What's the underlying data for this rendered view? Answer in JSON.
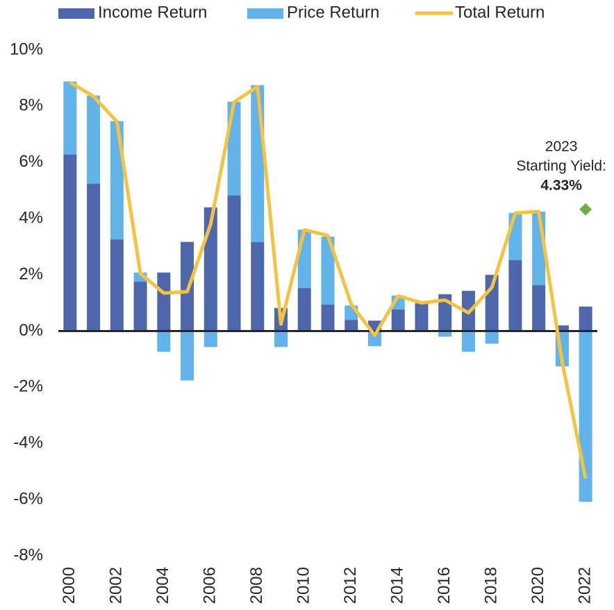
{
  "chart_data": {
    "type": "bar",
    "categories": [
      "2000",
      null,
      "2002",
      null,
      "2004",
      null,
      "2006",
      null,
      "2008",
      null,
      "2010",
      null,
      "2012",
      null,
      "2014",
      null,
      "2016",
      null,
      "2018",
      null,
      "2020",
      null,
      "2022"
    ],
    "series": [
      {
        "name": "Income Return",
        "type": "bar",
        "color": "#4e67aa",
        "values": [
          6.28,
          5.24,
          3.26,
          1.76,
          2.08,
          3.17,
          4.4,
          4.82,
          3.17,
          0.82,
          1.53,
          0.94,
          0.4,
          0.37,
          0.77,
          0.99,
          1.31,
          1.43,
          2.0,
          2.52,
          1.63,
          0.2,
          0.87
        ]
      },
      {
        "name": "Price Return",
        "type": "bar",
        "color": "#62b3ea",
        "values": [
          2.6,
          3.14,
          4.21,
          0.32,
          -0.74,
          -1.76,
          -0.57,
          3.34,
          5.58,
          -0.57,
          2.08,
          2.42,
          0.51,
          -0.54,
          0.49,
          0,
          -0.2,
          -0.74,
          -0.45,
          1.68,
          2.62,
          -1.26,
          -6.08
        ]
      },
      {
        "name": "Total Return",
        "type": "line",
        "color": "#f5c342",
        "values": [
          8.85,
          8.35,
          7.45,
          2.05,
          1.35,
          1.4,
          3.8,
          8.15,
          8.7,
          0.25,
          3.6,
          3.4,
          0.95,
          -0.15,
          1.25,
          1.0,
          1.1,
          0.65,
          1.55,
          4.2,
          4.25,
          -1.1,
          -5.25
        ]
      }
    ],
    "ylim": [
      -8,
      10
    ],
    "yticks": [
      {
        "value": -8,
        "label": "-8%"
      },
      {
        "value": -6,
        "label": "-6%"
      },
      {
        "value": -4,
        "label": "-4%"
      },
      {
        "value": -2,
        "label": "-2%"
      },
      {
        "value": 0,
        "label": "0%"
      },
      {
        "value": 2,
        "label": "2%"
      },
      {
        "value": 4,
        "label": "4%"
      },
      {
        "value": 6,
        "label": "6%"
      },
      {
        "value": 8,
        "label": "8%"
      },
      {
        "value": 10,
        "label": "10%"
      }
    ],
    "grid": false,
    "legend": "top",
    "annotation": {
      "lines": [
        "2023",
        "Starting Yield:"
      ],
      "value": 4.33,
      "value_label": "4.33%",
      "color": "#70ad47"
    }
  }
}
